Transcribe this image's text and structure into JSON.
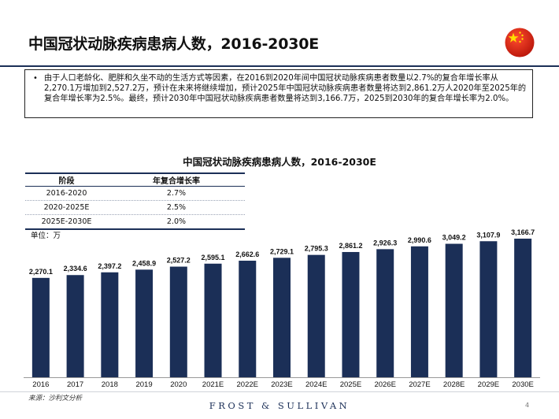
{
  "header": {
    "title": "中国冠状动脉疾病患病人数，2016-2030E"
  },
  "summary": {
    "text": "由于人口老龄化、肥胖和久坐不动的生活方式等因素，在2016到2020年间中国冠状动脉疾病患者数量以2.7%的复合年增长率从2,270.1万增加到2,527.2万，预计在未来将继续增加，预计2025年中国冠状动脉疾病患者数量将达到2,861.2万人2020年至2025年的复合年增长率为2.5%。最终，预计2030年中国冠状动脉疾病患者数量将达到3,166.7万，2025到2030年的复合年增长率为2.0%。"
  },
  "cagr_table": {
    "headers": [
      "阶段",
      "年复合增长率"
    ],
    "rows": [
      {
        "period": "2016-2020",
        "rate": "2.7%"
      },
      {
        "period": "2020-2025E",
        "rate": "2.5%"
      },
      {
        "period": "2025E-2030E",
        "rate": "2.0%"
      }
    ]
  },
  "chart_data": {
    "type": "bar",
    "title": "中国冠状动脉疾病患病人数，2016-2030E",
    "unit": "单位：万",
    "categories": [
      "2016",
      "2017",
      "2018",
      "2019",
      "2020",
      "2021E",
      "2022E",
      "2023E",
      "2024E",
      "2025E",
      "2026E",
      "2027E",
      "2028E",
      "2029E",
      "2030E"
    ],
    "values": [
      2270.1,
      2334.6,
      2397.2,
      2458.9,
      2527.2,
      2595.1,
      2662.6,
      2729.1,
      2795.3,
      2861.2,
      2926.3,
      2990.6,
      3049.2,
      3107.9,
      3166.7
    ],
    "value_labels": [
      "2,270.1",
      "2,334.6",
      "2,397.2",
      "2,458.9",
      "2,527.2",
      "2,595.1",
      "2,662.6",
      "2,729.1",
      "2,795.3",
      "2,861.2",
      "2,926.3",
      "2,990.6",
      "3,049.2",
      "3,107.9",
      "3,166.7"
    ],
    "bar_color": "#1b2f57",
    "ylim": [
      0,
      3166.7
    ],
    "grid": false,
    "legend": "none"
  },
  "footer": {
    "source": "来源：沙利文分析",
    "brand": "FROST & SULLIVAN",
    "page": "4"
  },
  "colors": {
    "navy": "#1b2f57",
    "flag_red": "#de2910",
    "flag_star": "#ffde00"
  }
}
